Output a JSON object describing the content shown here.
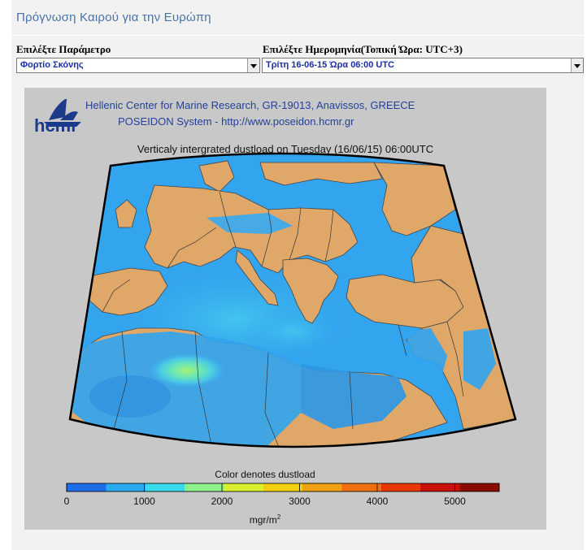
{
  "header": {
    "title": "Πρόγνωση Καιρού για την Ευρώπη"
  },
  "parameter": {
    "label": "Επιλέξτε Παράμετρο",
    "selected": "Φορτίο Σκόνης"
  },
  "date": {
    "label": "Επιλέξτε Ημερομηνία(Τοπική Ώρα: UTC+3)",
    "selected": "Τρίτη 16-06-15 Ώρα 06:00 UTC"
  },
  "map": {
    "logo_text": "hcmr",
    "institution": "Hellenic Center for Marine Research, GR-19013, Anavissos, GREECE",
    "system": "POSEIDON System - http://www.poseidon.hcmr.gr",
    "map_title": "Verticaly intergrated dustload on Tuesday (16/06/15) 06:00UTC",
    "colorbar_title": "Color denotes dustload",
    "colorbar_ticks": [
      "0",
      "1000",
      "2000",
      "3000",
      "4000",
      "5000"
    ],
    "unit_base": "mgr/m",
    "unit_exp": "2",
    "colors": {
      "sea_dust_low": "#33a4ee",
      "land": "#e0a868",
      "border": "#333333",
      "panel": "#c8c8c8"
    },
    "colorbar_colors": [
      "#1e6ee8",
      "#2aa8f0",
      "#3ad8ec",
      "#8ef08a",
      "#d8f030",
      "#f0d010",
      "#f0a010",
      "#f07010",
      "#e83808",
      "#c81008",
      "#8a0a04"
    ]
  }
}
